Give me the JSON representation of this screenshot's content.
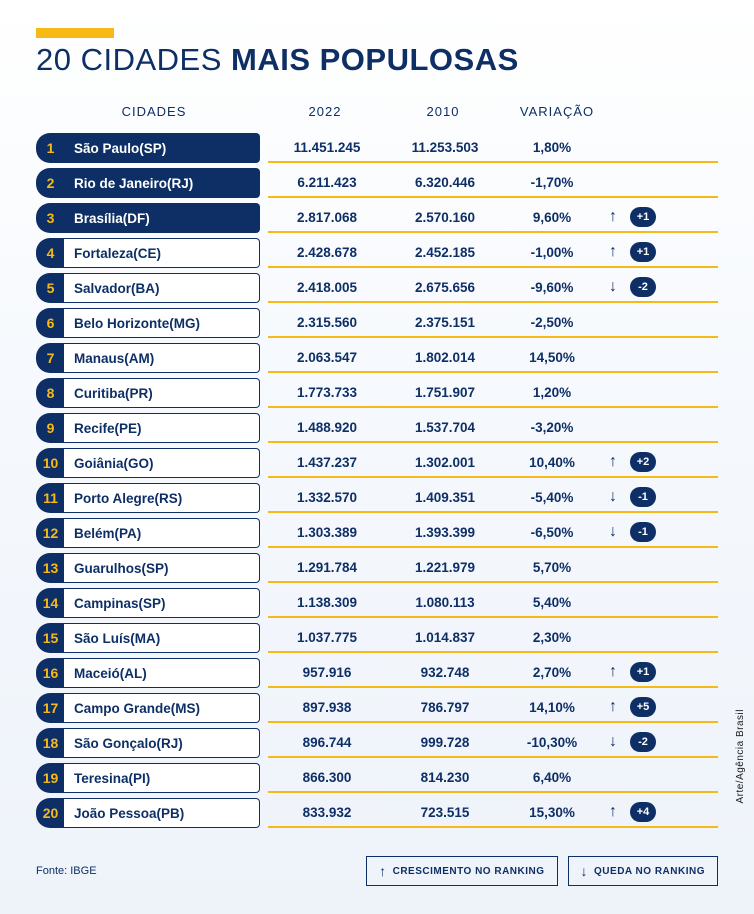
{
  "colors": {
    "primary": "#0e2f66",
    "accent": "#f7b916",
    "bg_top": "#ffffff",
    "bg_bottom": "#eef3fa",
    "text": "#0e2f66",
    "pill_bg": "#0e2f66",
    "pill_text": "#ffffff"
  },
  "title_light": "20 CIDADES ",
  "title_bold": "MAIS POPULOSAS",
  "headers": {
    "city": "CIDADES",
    "y2022": "2022",
    "y2010": "2010",
    "var": "VARIAÇÃO"
  },
  "rows": [
    {
      "rank": "1",
      "city": "São Paulo(SP)",
      "y2022": "11.451.245",
      "y2010": "11.253.503",
      "var": "1,80%",
      "highlight": true
    },
    {
      "rank": "2",
      "city": "Rio de Janeiro(RJ)",
      "y2022": "6.211.423",
      "y2010": "6.320.446",
      "var": "-1,70%",
      "highlight": true
    },
    {
      "rank": "3",
      "city": "Brasília(DF)",
      "y2022": "2.817.068",
      "y2010": "2.570.160",
      "var": "9,60%",
      "highlight": true,
      "arrow": "up",
      "delta": "+1"
    },
    {
      "rank": "4",
      "city": "Fortaleza(CE)",
      "y2022": "2.428.678",
      "y2010": "2.452.185",
      "var": "-1,00%",
      "arrow": "up",
      "delta": "+1"
    },
    {
      "rank": "5",
      "city": "Salvador(BA)",
      "y2022": "2.418.005",
      "y2010": "2.675.656",
      "var": "-9,60%",
      "arrow": "down",
      "delta": "-2"
    },
    {
      "rank": "6",
      "city": "Belo Horizonte(MG)",
      "y2022": "2.315.560",
      "y2010": "2.375.151",
      "var": "-2,50%"
    },
    {
      "rank": "7",
      "city": "Manaus(AM)",
      "y2022": "2.063.547",
      "y2010": "1.802.014",
      "var": "14,50%"
    },
    {
      "rank": "8",
      "city": "Curitiba(PR)",
      "y2022": "1.773.733",
      "y2010": "1.751.907",
      "var": "1,20%"
    },
    {
      "rank": "9",
      "city": "Recife(PE)",
      "y2022": "1.488.920",
      "y2010": "1.537.704",
      "var": "-3,20%"
    },
    {
      "rank": "10",
      "city": "Goiânia(GO)",
      "y2022": "1.437.237",
      "y2010": "1.302.001",
      "var": "10,40%",
      "arrow": "up",
      "delta": "+2"
    },
    {
      "rank": "11",
      "city": "Porto Alegre(RS)",
      "y2022": "1.332.570",
      "y2010": "1.409.351",
      "var": "-5,40%",
      "arrow": "down",
      "delta": "-1"
    },
    {
      "rank": "12",
      "city": "Belém(PA)",
      "y2022": "1.303.389",
      "y2010": "1.393.399",
      "var": "-6,50%",
      "arrow": "down",
      "delta": "-1"
    },
    {
      "rank": "13",
      "city": "Guarulhos(SP)",
      "y2022": "1.291.784",
      "y2010": "1.221.979",
      "var": "5,70%"
    },
    {
      "rank": "14",
      "city": "Campinas(SP)",
      "y2022": "1.138.309",
      "y2010": "1.080.113",
      "var": "5,40%"
    },
    {
      "rank": "15",
      "city": "São Luís(MA)",
      "y2022": "1.037.775",
      "y2010": "1.014.837",
      "var": "2,30%"
    },
    {
      "rank": "16",
      "city": "Maceió(AL)",
      "y2022": "957.916",
      "y2010": "932.748",
      "var": "2,70%",
      "arrow": "up",
      "delta": "+1"
    },
    {
      "rank": "17",
      "city": "Campo Grande(MS)",
      "y2022": "897.938",
      "y2010": "786.797",
      "var": "14,10%",
      "arrow": "up",
      "delta": "+5"
    },
    {
      "rank": "18",
      "city": "São Gonçalo(RJ)",
      "y2022": "896.744",
      "y2010": "999.728",
      "var": "-10,30%",
      "arrow": "down",
      "delta": "-2"
    },
    {
      "rank": "19",
      "city": "Teresina(PI)",
      "y2022": "866.300",
      "y2010": "814.230",
      "var": "6,40%"
    },
    {
      "rank": "20",
      "city": "João Pessoa(PB)",
      "y2022": "833.932",
      "y2010": "723.515",
      "var": "15,30%",
      "arrow": "up",
      "delta": "+4"
    }
  ],
  "footer": {
    "source": "Fonte: IBGE",
    "legend_up": "CRESCIMENTO NO RANKING",
    "legend_down": "QUEDA NO RANKING"
  },
  "credit": "Arte/Agência Brasil",
  "glyphs": {
    "up": "↑",
    "down": "↓"
  }
}
